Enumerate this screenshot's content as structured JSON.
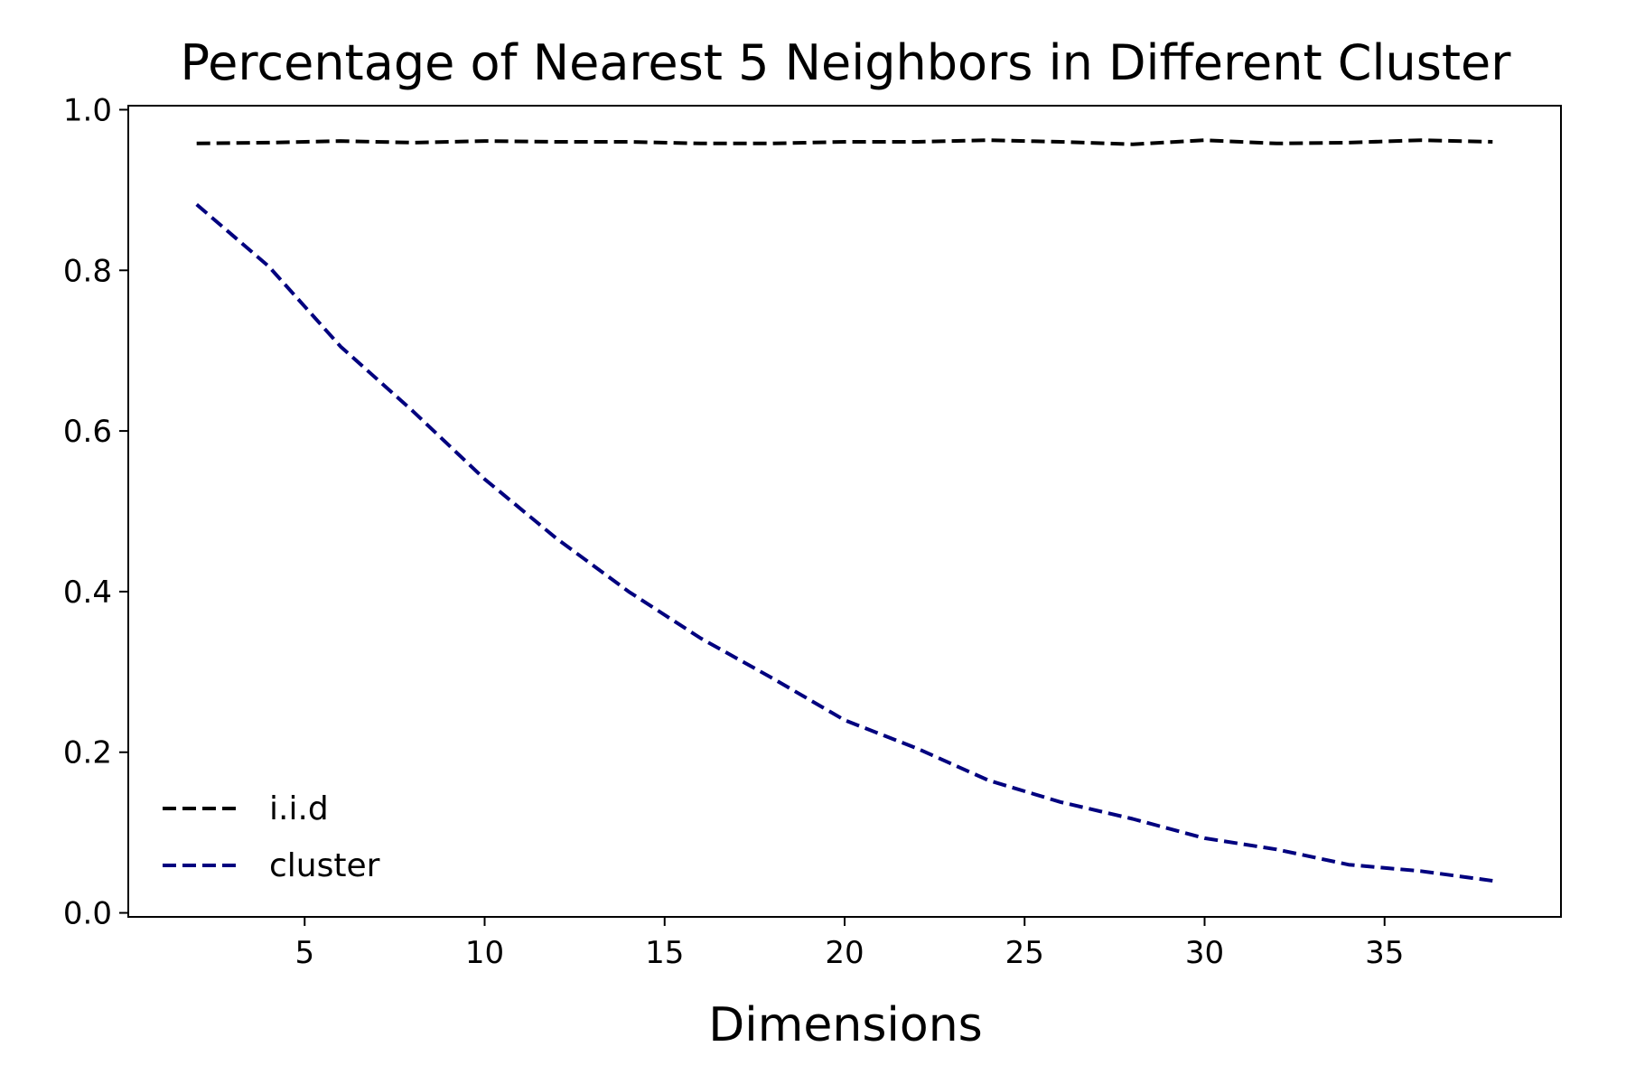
{
  "chart_data": {
    "type": "line",
    "title": "Percentage of Nearest 5 Neighbors in Different Cluster",
    "xlabel": "Dimensions",
    "ylabel": "",
    "xlim": [
      0.1,
      39.9
    ],
    "ylim": [
      -0.005,
      1.005
    ],
    "xticks": [
      5,
      10,
      15,
      20,
      25,
      30,
      35
    ],
    "yticks": [
      0.0,
      0.2,
      0.4,
      0.6,
      0.8,
      1.0
    ],
    "xtick_labels": [
      "5",
      "10",
      "15",
      "20",
      "25",
      "30",
      "35"
    ],
    "ytick_labels": [
      "0.0",
      "0.2",
      "0.4",
      "0.6",
      "0.8",
      "1.0"
    ],
    "grid": false,
    "legend_position": "lower-left",
    "x": [
      2,
      4,
      6,
      8,
      10,
      12,
      14,
      16,
      18,
      20,
      22,
      24,
      26,
      28,
      30,
      32,
      34,
      36,
      38
    ],
    "series": [
      {
        "name": "i.i.d",
        "color": "#000000",
        "style": "dashed",
        "values": [
          0.958,
          0.959,
          0.961,
          0.959,
          0.961,
          0.96,
          0.96,
          0.958,
          0.958,
          0.96,
          0.96,
          0.962,
          0.96,
          0.957,
          0.962,
          0.958,
          0.959,
          0.962,
          0.96
        ]
      },
      {
        "name": "cluster",
        "color": "#00007f",
        "style": "dashed",
        "values": [
          0.882,
          0.805,
          0.705,
          0.625,
          0.54,
          0.466,
          0.4,
          0.342,
          0.292,
          0.24,
          0.205,
          0.165,
          0.138,
          0.117,
          0.093,
          0.079,
          0.06,
          0.052,
          0.04
        ]
      }
    ]
  }
}
